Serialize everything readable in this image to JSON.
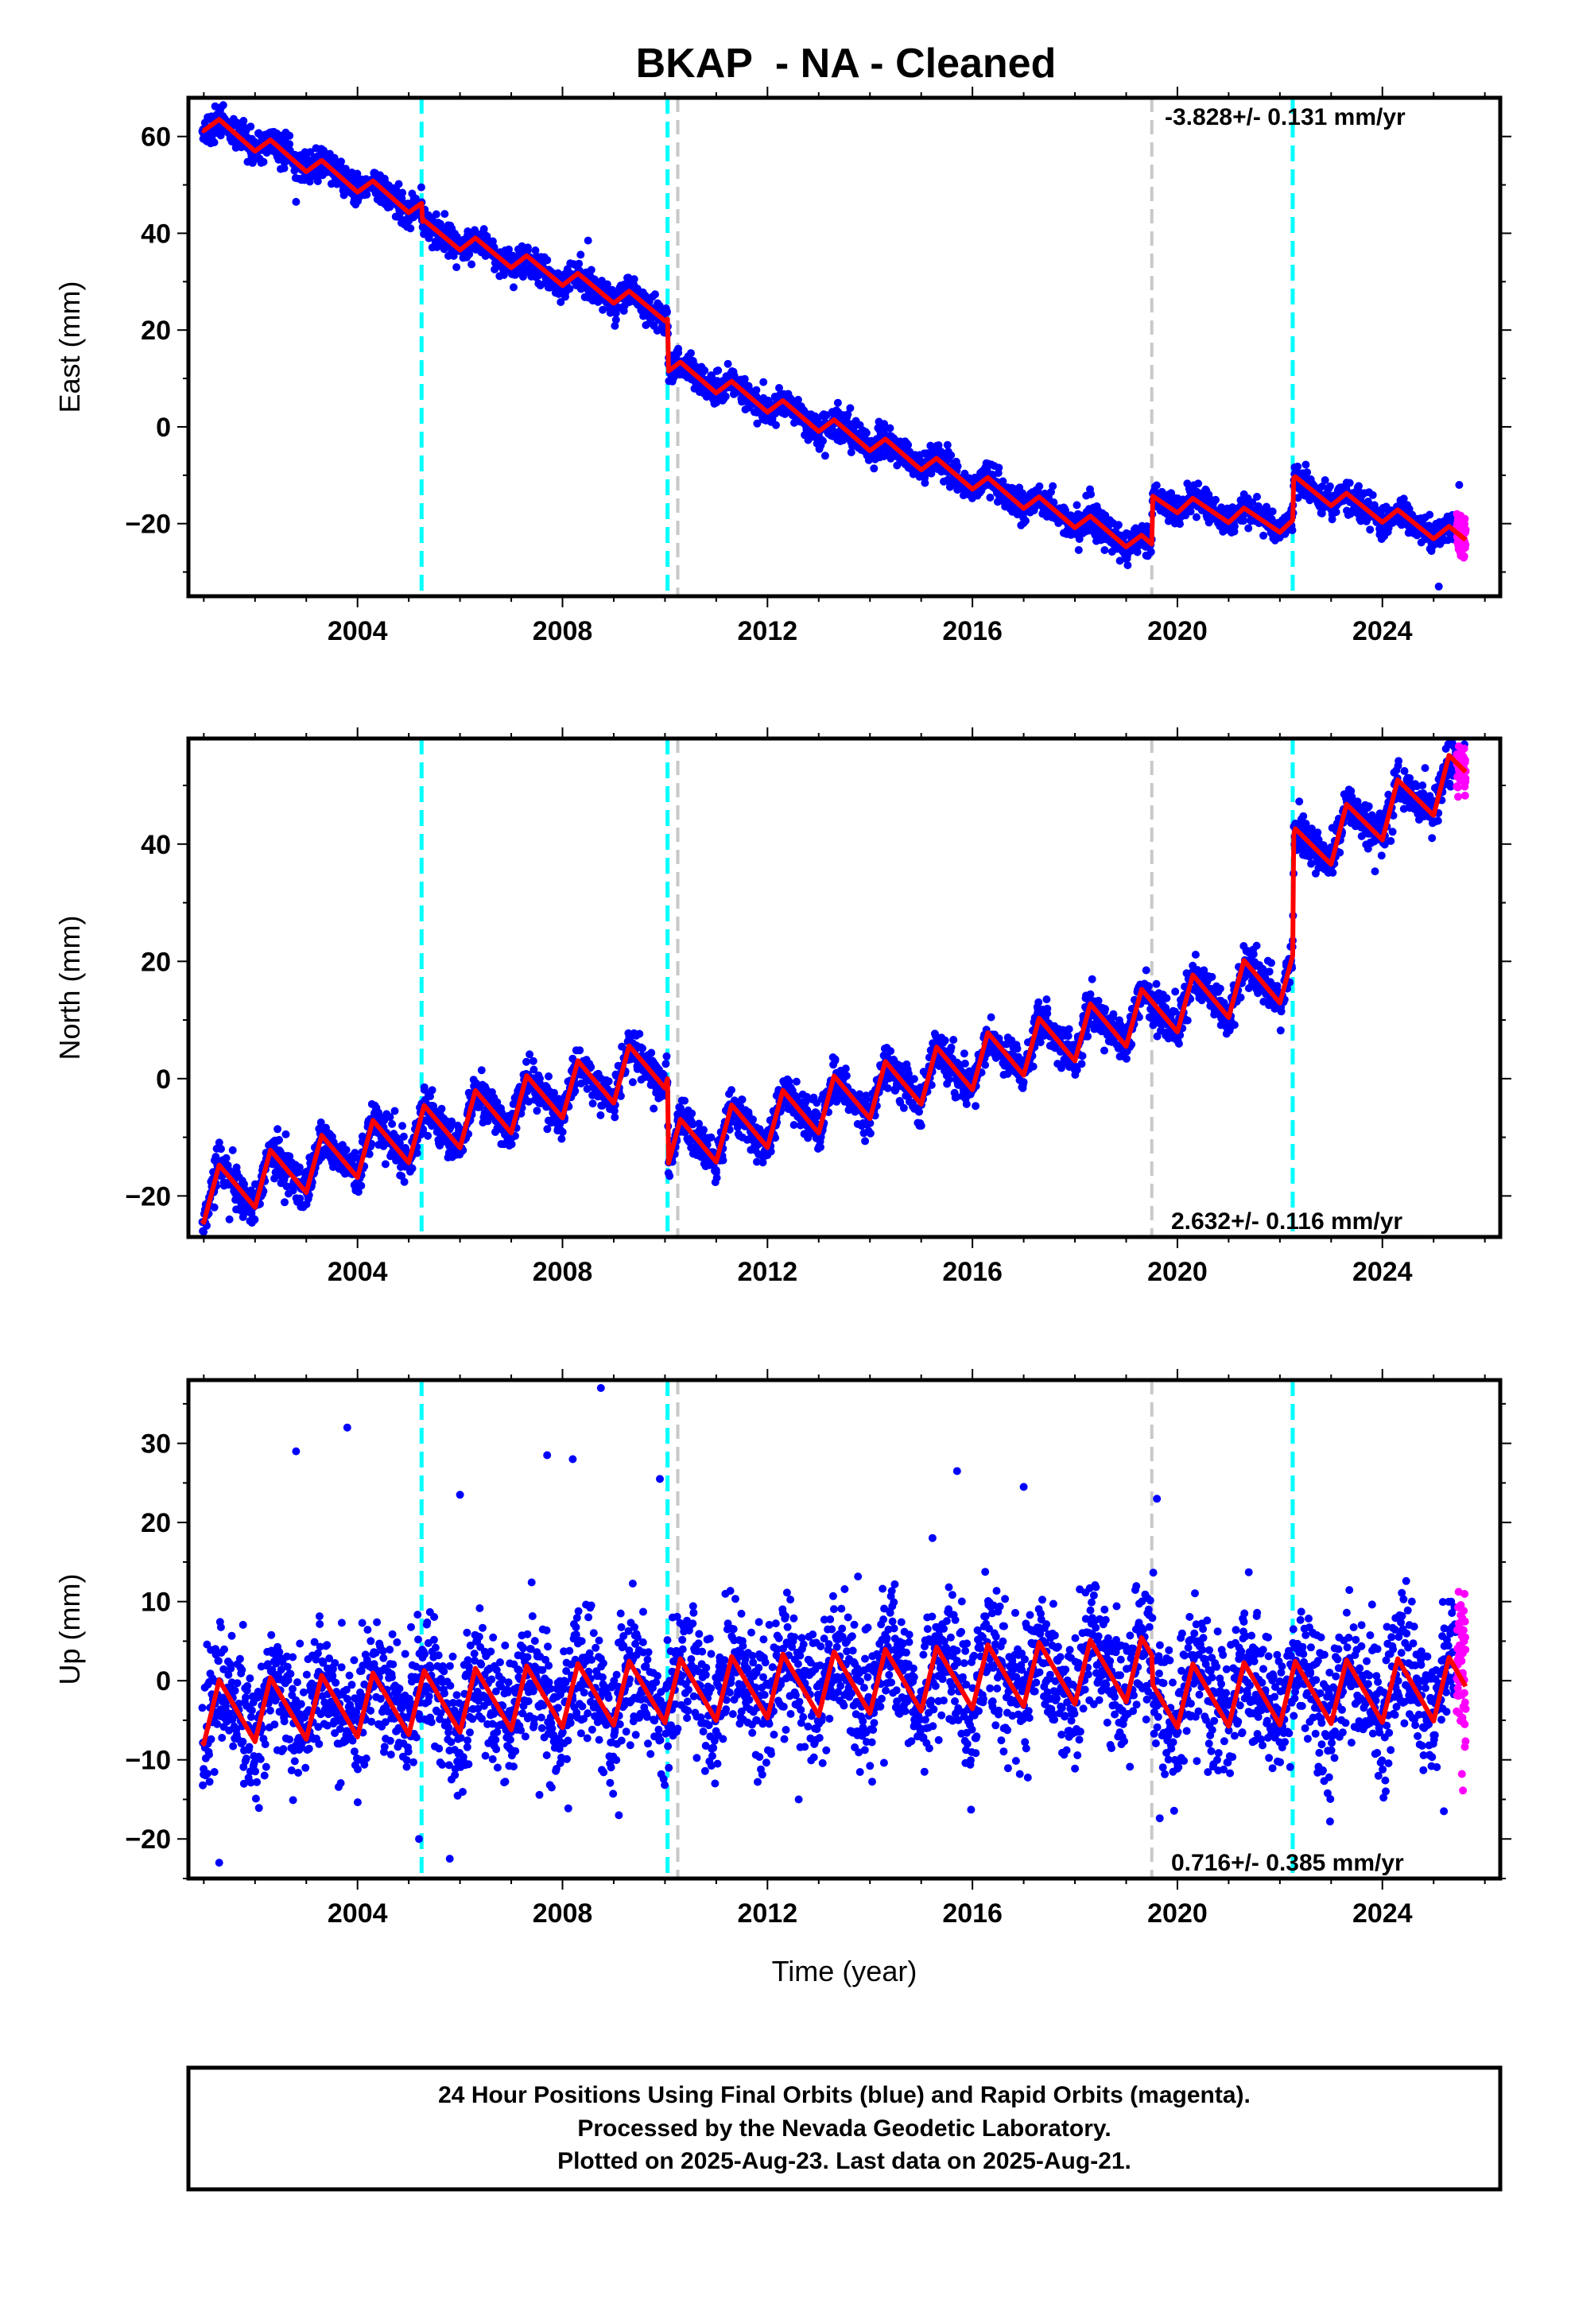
{
  "title": "BKAP  - NA - Cleaned",
  "xlabel": "Time (year)",
  "footer": {
    "line1": "24 Hour Positions Using Final Orbits (blue) and Rapid Orbits (magenta).",
    "line2": "Processed by the Nevada Geodetic Laboratory.",
    "line3": "Plotted on 2025-Aug-23. Last data on 2025-Aug-21."
  },
  "colors": {
    "final_orbits": "#0000ff",
    "rapid_orbits": "#ff00ff",
    "model": "#ff0000",
    "antenna_change": "#00ffff",
    "earthquake": "#c8c8c8"
  },
  "chart_data": [
    {
      "type": "scatter",
      "component": "east",
      "ylabel": "East (mm)",
      "rate_label": "-3.828+/- 0.131 mm/yr",
      "rate_position": "top-right",
      "xlim": [
        2000.7,
        2026.3
      ],
      "ylim": [
        -35,
        68
      ],
      "xticks": [
        2004,
        2008,
        2012,
        2016,
        2020,
        2024
      ],
      "yticks": [
        -20,
        0,
        20,
        40,
        60
      ],
      "grid": false,
      "cyan_lines": [
        2005.25,
        2010.05,
        2022.25
      ],
      "gray_lines": [
        2010.25,
        2019.5
      ],
      "data_span": [
        2000.97,
        2025.63
      ],
      "rapid_span": [
        2025.45,
        2025.63
      ],
      "model": {
        "rate": -3.828,
        "annual_amp": 1.8,
        "knots": [
          [
            2001.0,
            63.0
          ],
          [
            2005.25,
            45.0
          ],
          [
            2005.27,
            41.0
          ],
          [
            2010.05,
            23.5
          ],
          [
            2010.07,
            12.5
          ],
          [
            2019.5,
            -25.0
          ],
          [
            2019.52,
            -15.0
          ],
          [
            2022.25,
            -20.5
          ],
          [
            2022.27,
            -12.0
          ],
          [
            2025.63,
            -23.5
          ]
        ]
      },
      "noise": {
        "final": 1.6,
        "rapid": 2.2
      },
      "outliers": [
        [
          2002.8,
          46.5
        ],
        [
          2005.7,
          44.0
        ],
        [
          2008.5,
          38.5
        ],
        [
          2025.1,
          -33.0
        ],
        [
          2025.5,
          -12.0
        ]
      ]
    },
    {
      "type": "scatter",
      "component": "north",
      "ylabel": "North (mm)",
      "rate_label": "2.632+/- 0.116 mm/yr",
      "rate_position": "bottom-right",
      "xlim": [
        2000.7,
        2026.3
      ],
      "ylim": [
        -27,
        58
      ],
      "xticks": [
        2004,
        2008,
        2012,
        2016,
        2020,
        2024
      ],
      "yticks": [
        -20,
        0,
        20,
        40
      ],
      "grid": false,
      "cyan_lines": [
        2005.25,
        2010.05,
        2022.25
      ],
      "gray_lines": [
        2010.25,
        2019.5
      ],
      "data_span": [
        2000.97,
        2025.63
      ],
      "rapid_span": [
        2025.45,
        2025.63
      ],
      "model": {
        "rate": 2.632,
        "annual_amp": 4.5,
        "knots": [
          [
            2001.0,
            -20.0
          ],
          [
            2010.05,
            3.0
          ],
          [
            2010.07,
            -12.0
          ],
          [
            2022.25,
            18.0
          ],
          [
            2022.27,
            38.0
          ],
          [
            2025.63,
            52.0
          ]
        ]
      },
      "noise": {
        "final": 1.8,
        "rapid": 2.0
      },
      "outliers": [
        [
          2001.5,
          -24.0
        ],
        [
          2011.0,
          -16.0
        ],
        [
          2025.6,
          57.0
        ]
      ]
    },
    {
      "type": "scatter",
      "component": "up",
      "ylabel": "Up (mm)",
      "rate_label": "0.716+/- 0.385 mm/yr",
      "rate_position": "bottom-right",
      "xlim": [
        2000.7,
        2026.3
      ],
      "ylim": [
        -25,
        38
      ],
      "xticks": [
        2004,
        2008,
        2012,
        2016,
        2020,
        2024
      ],
      "yticks": [
        -20,
        -10,
        0,
        10,
        20,
        30
      ],
      "grid": false,
      "cyan_lines": [
        2005.25,
        2010.05,
        2022.25
      ],
      "gray_lines": [
        2010.25,
        2019.5
      ],
      "data_span": [
        2000.97,
        2025.63
      ],
      "rapid_span": [
        2025.45,
        2025.63
      ],
      "model": {
        "rate": 0.716,
        "annual_amp": 4.0,
        "knots": [
          [
            2001.0,
            -4.0
          ],
          [
            2019.5,
            1.5
          ],
          [
            2019.52,
            -2.0
          ],
          [
            2025.63,
            -1.0
          ]
        ]
      },
      "noise": {
        "final": 4.2,
        "rapid": 6.0
      },
      "outliers": [
        [
          2002.8,
          29.0
        ],
        [
          2003.8,
          32.0
        ],
        [
          2007.7,
          28.5
        ],
        [
          2008.2,
          28.0
        ],
        [
          2008.75,
          37.0
        ],
        [
          2009.9,
          25.5
        ],
        [
          2015.7,
          26.5
        ],
        [
          2017.0,
          24.5
        ],
        [
          2019.6,
          23.0
        ],
        [
          2005.2,
          -20.0
        ],
        [
          2005.8,
          -22.5
        ],
        [
          2001.3,
          -23.0
        ],
        [
          2009.1,
          -17.0
        ],
        [
          2025.2,
          -16.5
        ],
        [
          2006.0,
          23.5
        ]
      ]
    }
  ]
}
